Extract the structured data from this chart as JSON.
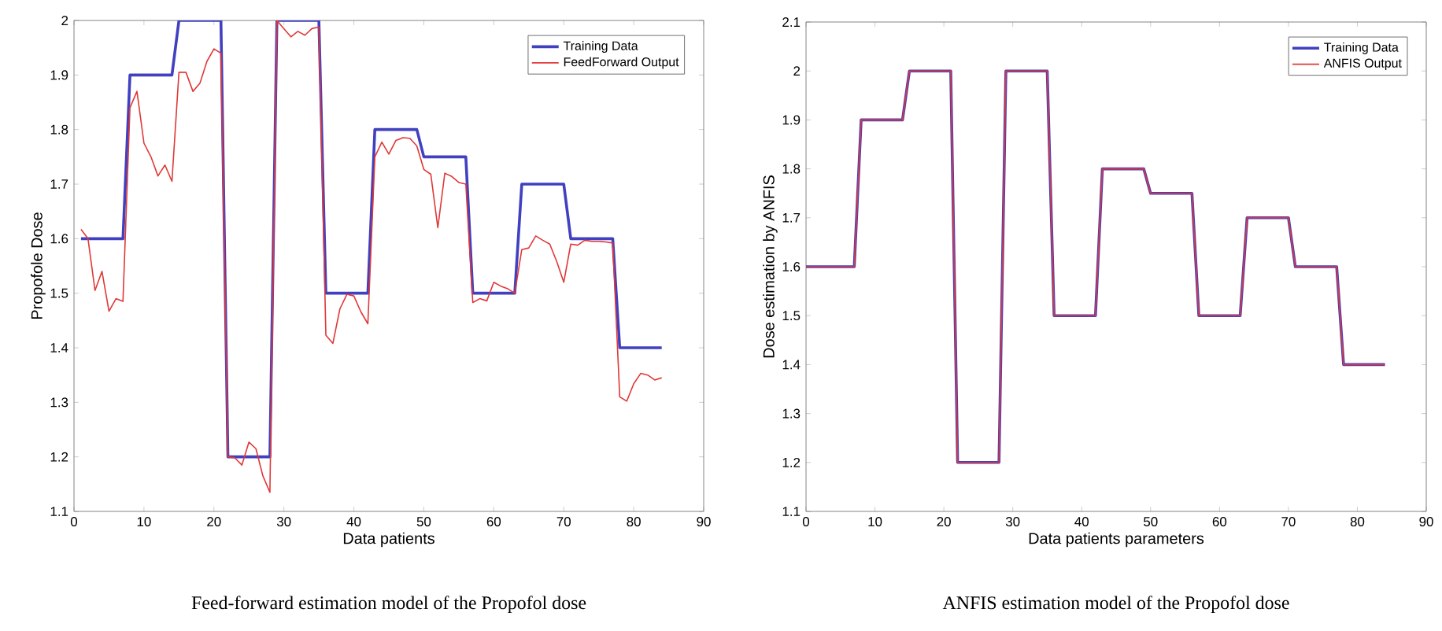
{
  "chart_data": [
    {
      "type": "line",
      "xlabel": "Data patients",
      "ylabel": "Propofole Dose",
      "annotations": [
        "Feed-forward estimation model of the Propofol dose"
      ],
      "xlim": [
        0,
        90
      ],
      "ylim": [
        1.1,
        2
      ],
      "xticks": [
        0,
        10,
        20,
        30,
        40,
        50,
        60,
        70,
        80,
        90
      ],
      "yticks": [
        1.1,
        1.2,
        1.3,
        1.4,
        1.5,
        1.6,
        1.7,
        1.8,
        1.9,
        2
      ],
      "legend": "top right",
      "series": [
        {
          "name": "Training Data",
          "color": "#4040c0",
          "x": [
            1,
            7,
            8,
            14,
            15,
            21,
            22,
            28,
            29,
            35,
            36,
            42,
            43,
            49,
            50,
            56,
            57,
            63,
            64,
            70,
            71,
            77,
            78,
            84
          ],
          "values": [
            1.6,
            1.6,
            1.9,
            1.9,
            2.0,
            2.0,
            1.2,
            1.2,
            2.0,
            2.0,
            1.5,
            1.5,
            1.8,
            1.8,
            1.75,
            1.75,
            1.5,
            1.5,
            1.7,
            1.7,
            1.6,
            1.6,
            1.4,
            1.4
          ]
        },
        {
          "name": "FeedForward Output",
          "color": "#e03838",
          "x": [
            1,
            2,
            3,
            4,
            5,
            6,
            7,
            8,
            9,
            10,
            11,
            12,
            13,
            14,
            15,
            16,
            17,
            18,
            19,
            20,
            21,
            22,
            23,
            24,
            25,
            26,
            27,
            28,
            29,
            30,
            31,
            32,
            33,
            34,
            35,
            36,
            37,
            38,
            39,
            40,
            41,
            42,
            43,
            44,
            45,
            46,
            47,
            48,
            49,
            50,
            51,
            52,
            53,
            54,
            55,
            56,
            57,
            58,
            59,
            60,
            61,
            62,
            63,
            64,
            65,
            66,
            67,
            68,
            69,
            70,
            71,
            72,
            73,
            74,
            75,
            76,
            77,
            78,
            79,
            80,
            81,
            82,
            83,
            84
          ],
          "values": [
            1.617,
            1.6,
            1.505,
            1.54,
            1.467,
            1.49,
            1.485,
            1.84,
            1.87,
            1.775,
            1.75,
            1.715,
            1.735,
            1.705,
            1.905,
            1.905,
            1.87,
            1.885,
            1.925,
            1.948,
            1.94,
            1.2,
            1.198,
            1.185,
            1.227,
            1.215,
            1.165,
            1.135,
            2.0,
            1.985,
            1.97,
            1.98,
            1.973,
            1.985,
            1.988,
            1.423,
            1.408,
            1.471,
            1.498,
            1.495,
            1.466,
            1.444,
            1.75,
            1.777,
            1.755,
            1.78,
            1.785,
            1.784,
            1.77,
            1.727,
            1.718,
            1.62,
            1.72,
            1.714,
            1.703,
            1.7,
            1.483,
            1.49,
            1.486,
            1.52,
            1.513,
            1.508,
            1.5,
            1.58,
            1.583,
            1.605,
            1.597,
            1.59,
            1.558,
            1.52,
            1.59,
            1.588,
            1.597,
            1.595,
            1.595,
            1.594,
            1.592,
            1.31,
            1.302,
            1.334,
            1.353,
            1.35,
            1.341,
            1.345
          ]
        }
      ]
    },
    {
      "type": "line",
      "xlabel": "Data patients parameters",
      "ylabel": "Dose estimation by ANFIS",
      "annotations": [
        "ANFIS estimation model of the Propofol dose"
      ],
      "xlim": [
        0,
        90
      ],
      "ylim": [
        1.1,
        2.1
      ],
      "xticks": [
        0,
        10,
        20,
        30,
        40,
        50,
        60,
        70,
        80,
        90
      ],
      "yticks": [
        1.1,
        1.2,
        1.3,
        1.4,
        1.5,
        1.6,
        1.7,
        1.8,
        1.9,
        2,
        2.1
      ],
      "legend": "top right",
      "series": [
        {
          "name": "Training Data",
          "color": "#4040c0",
          "x": [
            0,
            7,
            8,
            14,
            15,
            21,
            22,
            28,
            29,
            35,
            36,
            42,
            43,
            49,
            50,
            56,
            57,
            63,
            64,
            70,
            71,
            77,
            78,
            84
          ],
          "values": [
            1.6,
            1.6,
            1.9,
            1.9,
            2.0,
            2.0,
            1.2,
            1.2,
            2.0,
            2.0,
            1.5,
            1.5,
            1.8,
            1.8,
            1.75,
            1.75,
            1.5,
            1.5,
            1.7,
            1.7,
            1.6,
            1.6,
            1.4,
            1.4
          ]
        },
        {
          "name": "ANFIS Output",
          "color": "#e03838",
          "x": [
            0,
            7,
            8,
            14,
            15,
            21,
            22,
            28,
            29,
            35,
            36,
            42,
            43,
            49,
            50,
            56,
            57,
            63,
            64,
            70,
            71,
            77,
            78,
            84
          ],
          "values": [
            1.6,
            1.6,
            1.9,
            1.9,
            2.0,
            2.0,
            1.2,
            1.2,
            2.0,
            2.0,
            1.5,
            1.5,
            1.8,
            1.8,
            1.75,
            1.75,
            1.5,
            1.5,
            1.7,
            1.7,
            1.6,
            1.6,
            1.4,
            1.4
          ]
        }
      ]
    }
  ]
}
